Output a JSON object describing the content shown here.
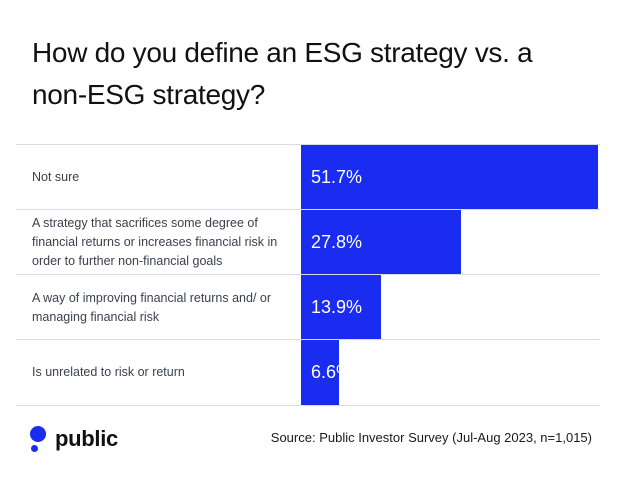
{
  "title": "How do you define an ESG strategy vs. a non-ESG strategy?",
  "source": "Source: Public Investor Survey (Jul-Aug 2023, n=1,015)",
  "logo_text": "public",
  "colors": {
    "bar": "#1a2cf0",
    "grid": "#d9dde3"
  },
  "chart_data": {
    "type": "bar",
    "orientation": "horizontal",
    "title": "How do you define an ESG strategy vs. a non-ESG strategy?",
    "categories": [
      "Not sure",
      "A strategy that sacrifices some degree of financial returns or increases financial risk in order to further non-financial goals",
      "A way of improving financial returns and/ or managing financial risk",
      "Is unrelated to risk or return"
    ],
    "values": [
      51.7,
      27.8,
      13.9,
      6.6
    ],
    "value_labels": [
      "51.7%",
      "27.8%",
      "13.9%",
      "6.6%"
    ],
    "xlim": [
      0,
      51.7
    ],
    "unit": "%"
  }
}
